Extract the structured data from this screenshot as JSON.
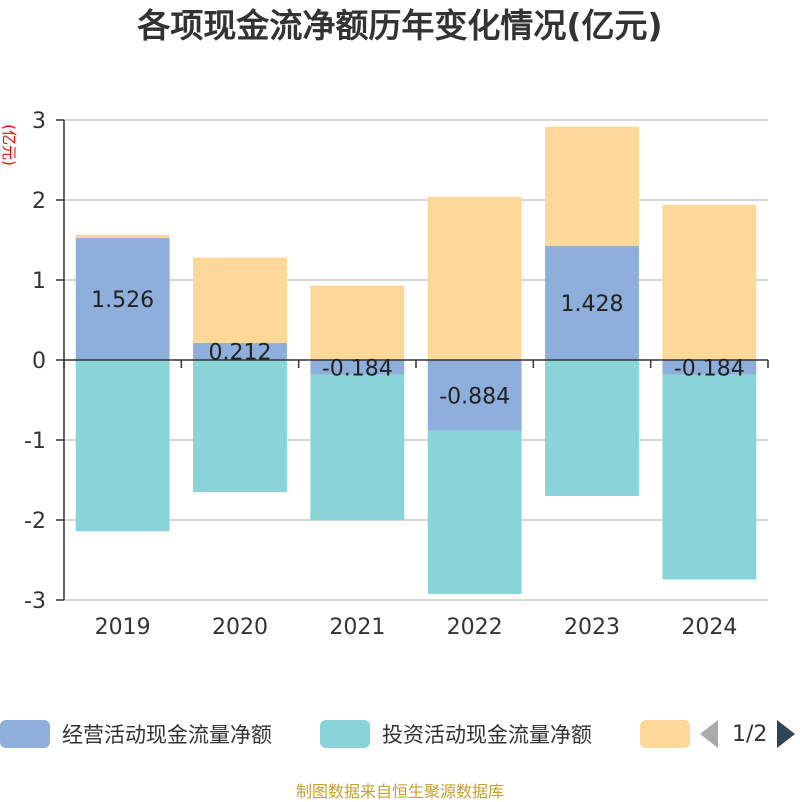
{
  "title": "各项现金流净额历年变化情况(亿元)",
  "source": "制图数据来自恒生聚源数据库",
  "legend": {
    "items": [
      {
        "label": "经营活动现金流量净额",
        "color": "#8eaedb"
      },
      {
        "label": "投资活动现金流量净额",
        "color": "#88d4d8"
      },
      {
        "label": "",
        "color": "#fed899"
      }
    ],
    "page": "1/2"
  },
  "chart_data": {
    "type": "bar",
    "stacked": true,
    "ylabel": "(亿元)",
    "ylim": [
      -3,
      3
    ],
    "yticks": [
      3,
      2,
      1,
      0,
      -1,
      -2,
      -3
    ],
    "categories": [
      "2019",
      "2020",
      "2021",
      "2022",
      "2023",
      "2024"
    ],
    "grid": true,
    "legend_position": "bottom",
    "series": [
      {
        "name": "经营活动现金流量净额",
        "color": "#8eaedb",
        "values": [
          1.526,
          0.212,
          -0.184,
          -0.884,
          1.428,
          -0.184
        ],
        "labels": [
          "1.526",
          "0.212",
          "-0.184",
          "-0.884",
          "1.428",
          "-0.184"
        ]
      },
      {
        "name": "投资活动现金流量净额",
        "color": "#88d4d8",
        "values": [
          -2.14,
          -1.65,
          -1.82,
          -2.04,
          -1.7,
          -2.56
        ]
      },
      {
        "name": "",
        "color": "#fed899",
        "values": [
          0.04,
          1.07,
          0.93,
          2.04,
          1.49,
          1.94
        ]
      }
    ]
  }
}
